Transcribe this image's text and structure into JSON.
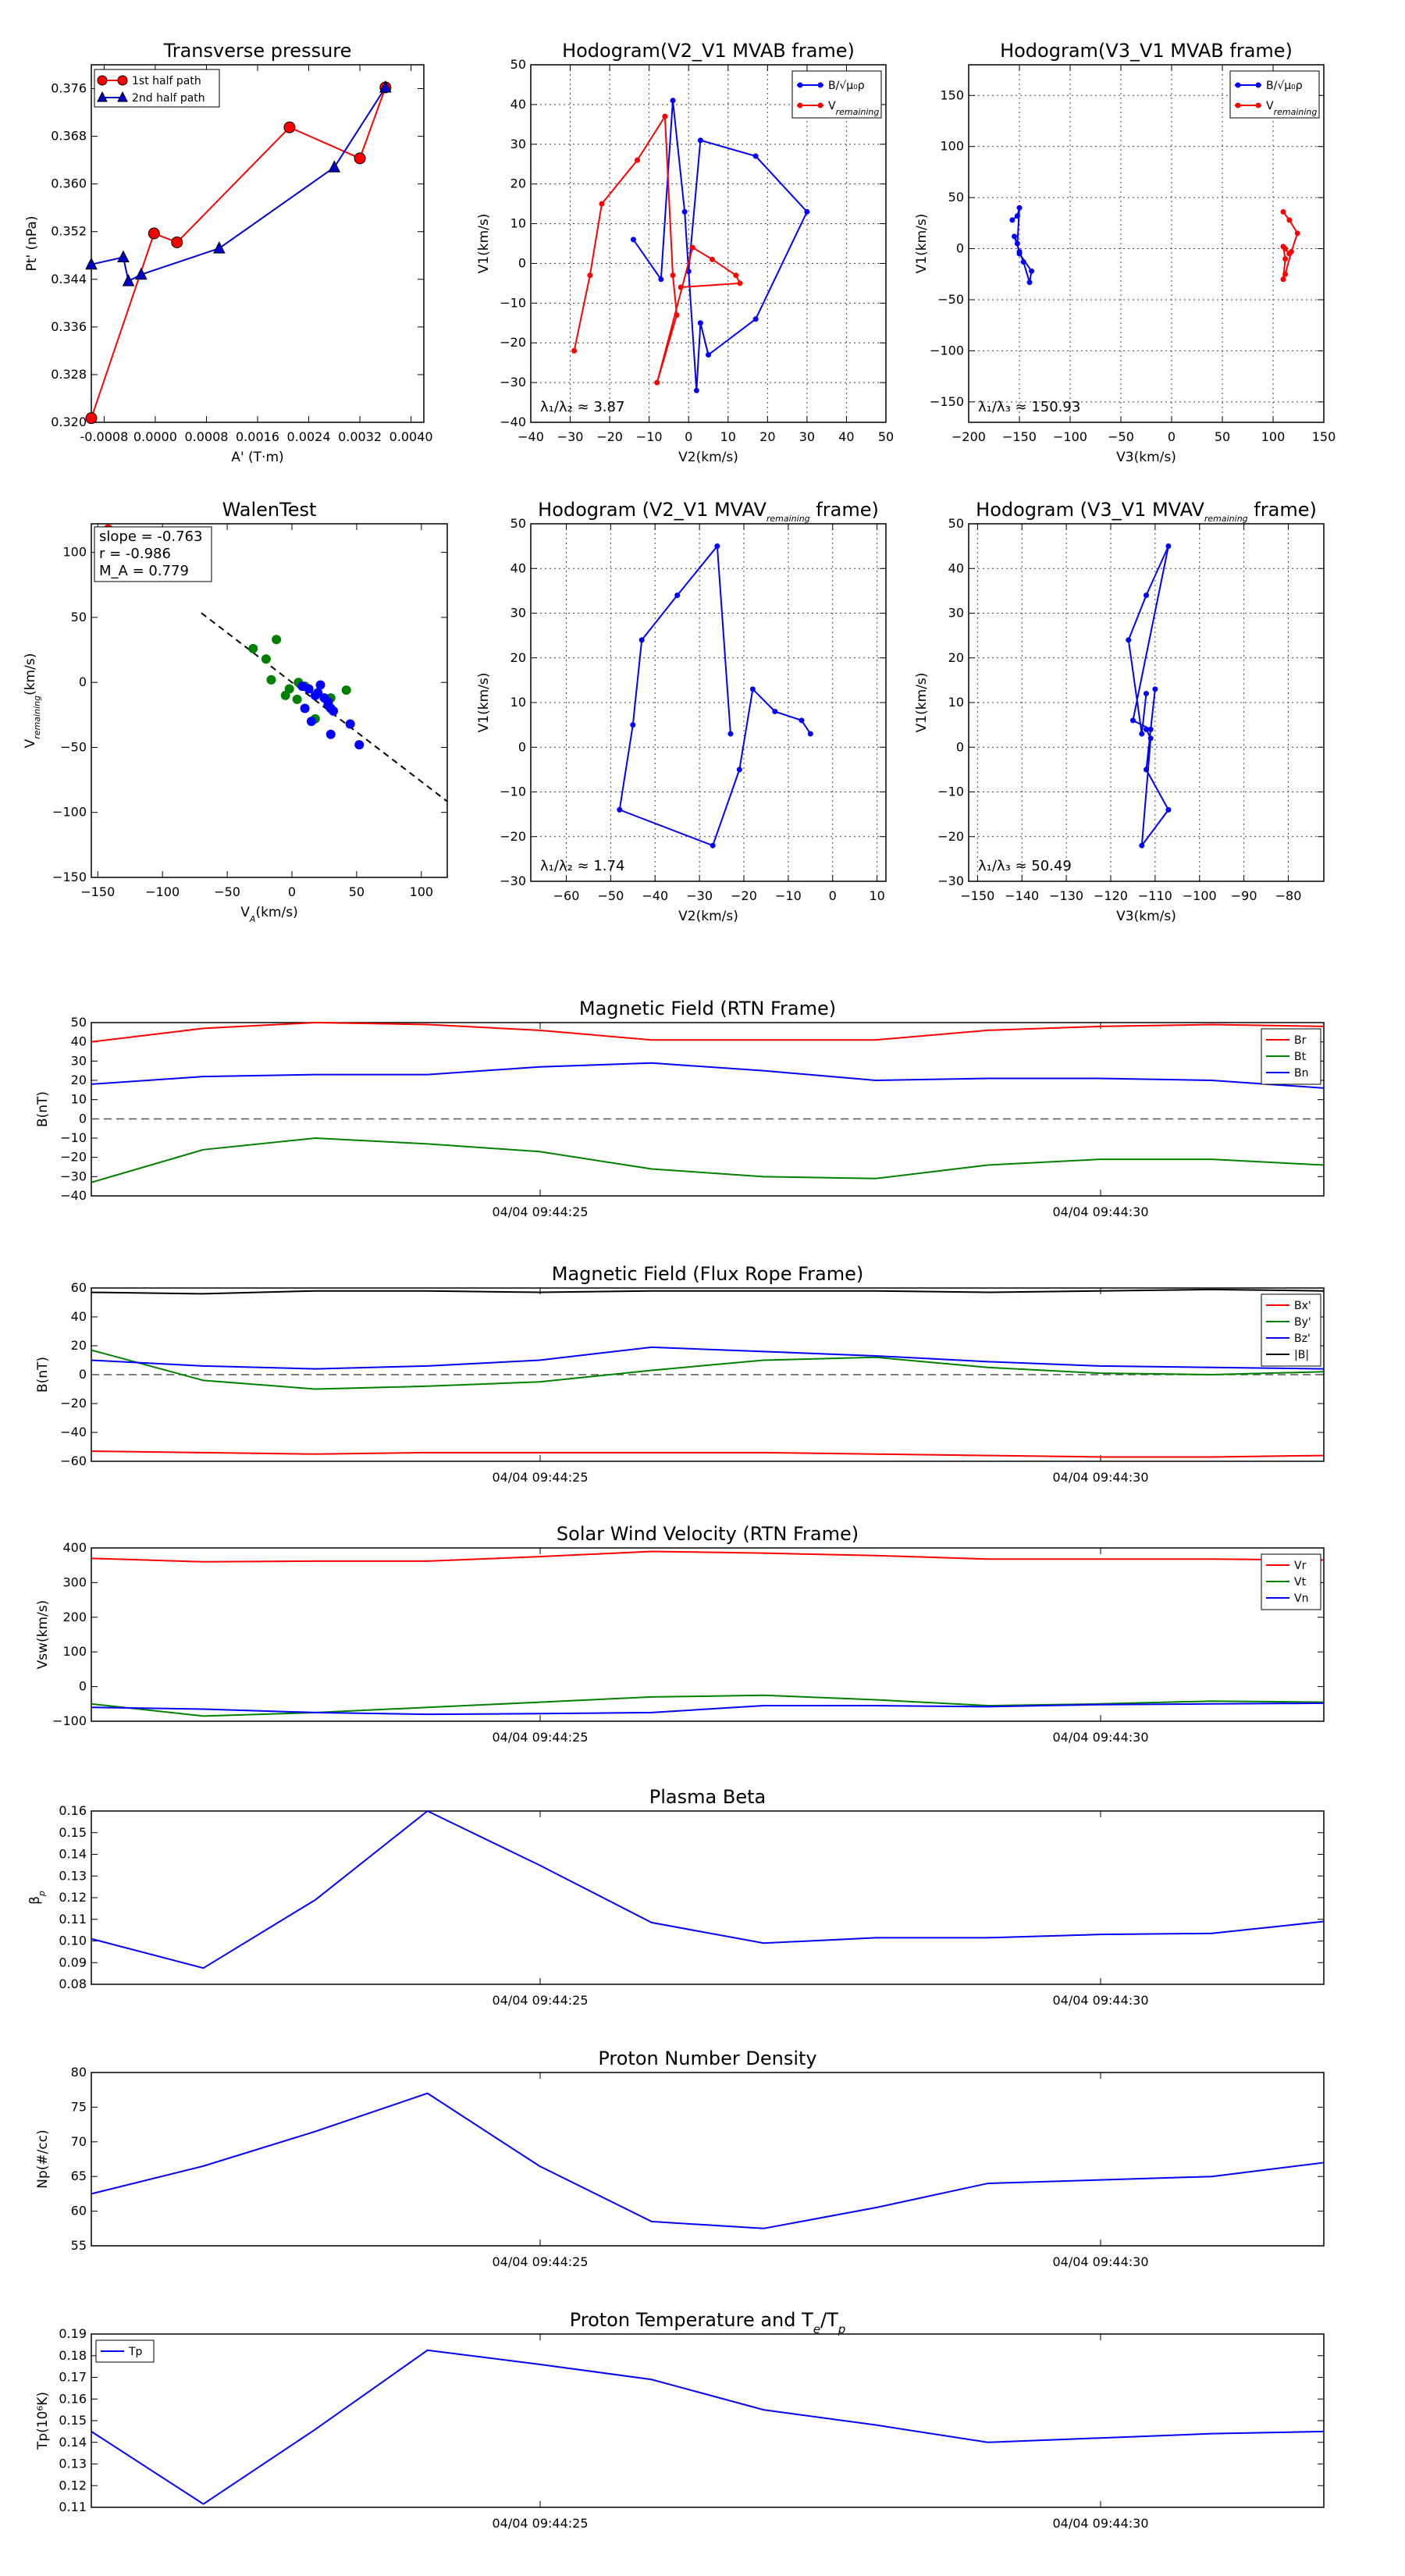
{
  "charts": {
    "tp": {
      "title": "Transverse pressure",
      "xlabel": "A' (T·m)",
      "ylabel": "Pt' (nPa)",
      "xticks": [
        "-0.0008",
        "0.0000",
        "0.0008",
        "0.0016",
        "0.0024",
        "0.0032",
        "0.0040"
      ],
      "yticks": [
        "0.320",
        "0.328",
        "0.336",
        "0.344",
        "0.352",
        "0.360",
        "0.368",
        "0.376"
      ],
      "legend": [
        "1st half path",
        "2nd half path"
      ],
      "colors": [
        "#ff0000",
        "#0000cc"
      ],
      "xlim": [
        -0.001,
        0.0042
      ],
      "ylim": [
        0.32,
        0.38
      ],
      "series": [
        {
          "name": "1st half path",
          "points": [
            [
              -0.001,
              0.3207
            ],
            [
              -2e-05,
              0.3517
            ],
            [
              0.00034,
              0.3502
            ],
            [
              0.0021,
              0.3695
            ],
            [
              0.0032,
              0.3643
            ],
            [
              0.0036,
              0.3762
            ]
          ]
        },
        {
          "name": "2nd half path",
          "points": [
            [
              -0.001,
              0.3465
            ],
            [
              -0.0005,
              0.3477
            ],
            [
              -0.00042,
              0.3437
            ],
            [
              -0.00022,
              0.3448
            ],
            [
              0.001,
              0.3492
            ],
            [
              0.0028,
              0.3628
            ],
            [
              0.0036,
              0.3762
            ]
          ]
        }
      ]
    },
    "h1": {
      "title": "Hodogram(V2_V1 MVAB frame)",
      "xlabel": "V2(km/s)",
      "ylabel": "V1(km/s)",
      "xticks": [
        "−40",
        "−30",
        "−20",
        "−10",
        "0",
        "10",
        "20",
        "30",
        "40",
        "50"
      ],
      "yticks": [
        "−40",
        "−30",
        "−20",
        "−10",
        "0",
        "10",
        "20",
        "30",
        "40",
        "50"
      ],
      "legend_b": "B/√μ₀ρ",
      "legend_v": "V",
      "legend_v_sub": "remaining",
      "ratio_label": "λ₁/λ₂ ≈ 3.87",
      "xlim": [
        -40,
        50
      ],
      "ylim": [
        -40,
        50
      ],
      "b": [
        [
          -14,
          6
        ],
        [
          -7,
          -4
        ],
        [
          -4,
          41
        ],
        [
          -1,
          13
        ],
        [
          2,
          -32
        ],
        [
          3,
          -15
        ],
        [
          5,
          -23
        ],
        [
          17,
          -14
        ],
        [
          30,
          13
        ],
        [
          17,
          27
        ],
        [
          3,
          31
        ],
        [
          0,
          -2
        ]
      ],
      "v": [
        [
          -29,
          -22
        ],
        [
          -25,
          -3
        ],
        [
          -22,
          15
        ],
        [
          -13,
          26
        ],
        [
          -6,
          37
        ],
        [
          -4,
          -3
        ],
        [
          -3,
          -13
        ],
        [
          -8,
          -30
        ],
        [
          1,
          4
        ],
        [
          6,
          1
        ],
        [
          12,
          -3
        ],
        [
          13,
          -5
        ],
        [
          -2,
          -6
        ]
      ]
    },
    "h2": {
      "title": "Hodogram(V3_V1 MVAB frame)",
      "xlabel": "V3(km/s)",
      "ylabel": "V1(km/s)",
      "xticks": [
        "−200",
        "−150",
        "−100",
        "−50",
        "0",
        "50",
        "100",
        "150"
      ],
      "yticks": [
        "−150",
        "−100",
        "−50",
        "0",
        "50",
        "100",
        "150"
      ],
      "legend_b": "B/√μ₀ρ",
      "legend_v": "V",
      "legend_v_sub": "remaining",
      "ratio_label": "λ₁/λ₃ ≈ 150.93",
      "xlim": [
        -200,
        150
      ],
      "ylim": [
        -170,
        180
      ],
      "b": [
        [
          -157,
          28
        ],
        [
          -152,
          32
        ],
        [
          -150,
          40
        ],
        [
          -152,
          5
        ],
        [
          -155,
          12
        ],
        [
          -150,
          -3
        ],
        [
          -146,
          -13
        ],
        [
          -140,
          -33
        ],
        [
          -138,
          -22
        ],
        [
          -150,
          -5
        ]
      ],
      "v": [
        [
          110,
          36
        ],
        [
          116,
          28
        ],
        [
          124,
          15
        ],
        [
          118,
          -3
        ],
        [
          112,
          -25
        ],
        [
          110,
          -30
        ],
        [
          112,
          -10
        ],
        [
          110,
          2
        ],
        [
          116,
          -5
        ],
        [
          112,
          0
        ]
      ]
    },
    "wt": {
      "title": "WalenTest",
      "xlabel": "V",
      "xlabel_sub": "A",
      "xlabel_end": "(km/s)",
      "ylabel": "V",
      "ylabel_sub": "remaining",
      "ylabel_end": "(km/s)",
      "xticks": [
        "−150",
        "−100",
        "−50",
        "0",
        "50",
        "100"
      ],
      "yticks": [
        "−150",
        "−100",
        "−50",
        "0",
        "50",
        "100"
      ],
      "box_lines": [
        "slope = -0.763",
        "r = -0.986",
        "M_A = 0.779"
      ],
      "xlim": [
        -155,
        120
      ],
      "ylim": [
        -150,
        122
      ],
      "slope": -0.763,
      "intercept": 0,
      "green": [
        [
          -30,
          26
        ],
        [
          -12,
          33
        ],
        [
          -20,
          18
        ],
        [
          -16,
          2
        ],
        [
          -2,
          -5
        ],
        [
          4,
          -13
        ],
        [
          5,
          0
        ],
        [
          10,
          -3
        ],
        [
          18,
          -28
        ],
        [
          30,
          -12
        ],
        [
          42,
          -6
        ],
        [
          -5,
          -10
        ]
      ],
      "blue": [
        [
          8,
          -3
        ],
        [
          13,
          -5
        ],
        [
          18,
          -10
        ],
        [
          20,
          -8
        ],
        [
          25,
          -12
        ],
        [
          28,
          -15
        ],
        [
          30,
          -20
        ],
        [
          32,
          -22
        ],
        [
          10,
          -20
        ],
        [
          15,
          -30
        ],
        [
          30,
          -40
        ],
        [
          45,
          -32
        ],
        [
          52,
          -48
        ],
        [
          22,
          -2
        ],
        [
          28,
          -17
        ]
      ],
      "red": [
        [
          -145,
          115
        ],
        [
          -142,
          118
        ]
      ]
    },
    "h3": {
      "title": "Hodogram (V2_V1 MVAV",
      "title_sub": "remaining",
      "title_end": " frame)",
      "xlabel": "V2(km/s)",
      "ylabel": "V1(km/s)",
      "xticks": [
        "−60",
        "−50",
        "−40",
        "−30",
        "−20",
        "−10",
        "0",
        "10"
      ],
      "yticks": [
        "−30",
        "−20",
        "−10",
        "0",
        "10",
        "20",
        "30",
        "40",
        "50"
      ],
      "ratio_label": "λ₁/λ₂ ≈ 1.74",
      "xlim": [
        -68,
        12
      ],
      "ylim": [
        -30,
        50
      ],
      "b": [
        [
          -5,
          3
        ],
        [
          -7,
          6
        ],
        [
          -13,
          8
        ],
        [
          -18,
          13
        ],
        [
          -21,
          -5
        ],
        [
          -27,
          -22
        ],
        [
          -48,
          -14
        ],
        [
          -45,
          5
        ],
        [
          -43,
          24
        ],
        [
          -35,
          34
        ],
        [
          -26,
          45
        ],
        [
          -23,
          3
        ]
      ]
    },
    "h4": {
      "title": "Hodogram (V3_V1 MVAV",
      "title_sub": "remaining",
      "title_end": " frame)",
      "xlabel": "V3(km/s)",
      "ylabel": "V1(km/s)",
      "xticks": [
        "−150",
        "−140",
        "−130",
        "−120",
        "−110",
        "−100",
        "−90",
        "−80"
      ],
      "yticks": [
        "−30",
        "−20",
        "−10",
        "0",
        "10",
        "20",
        "30",
        "40",
        "50"
      ],
      "ratio_label": "λ₁/λ₃ ≈ 50.49",
      "xlim": [
        -152,
        -72
      ],
      "ylim": [
        -30,
        50
      ],
      "b": [
        [
          -112,
          12
        ],
        [
          -113,
          3
        ],
        [
          -116,
          24
        ],
        [
          -112,
          34
        ],
        [
          -107,
          45
        ],
        [
          -115,
          6
        ],
        [
          -111,
          4
        ],
        [
          -110,
          13
        ],
        [
          -112,
          -5
        ],
        [
          -107,
          -14
        ],
        [
          -113,
          -22
        ],
        [
          -111,
          2
        ],
        [
          -112,
          4
        ]
      ]
    },
    "mf": {
      "title": "Magnetic Field (RTN Frame)",
      "ylabel": "B(nT)",
      "xticks": [
        "04/04 09:44:25",
        "04/04 09:44:30"
      ],
      "yticks": [
        "−40",
        "−30",
        "−20",
        "−10",
        "0",
        "10",
        "20",
        "30",
        "40",
        "50"
      ],
      "ylim": [
        -40,
        50
      ],
      "series": [
        {
          "name": "Br",
          "color": "#ff0000",
          "values": [
            40,
            47,
            50,
            49,
            46,
            41,
            41,
            41,
            46,
            48,
            49,
            48
          ]
        },
        {
          "name": "Bt",
          "color": "#008000",
          "values": [
            -33,
            -16,
            -10,
            -13,
            -17,
            -26,
            -30,
            -31,
            -24,
            -21,
            -21,
            -24
          ]
        },
        {
          "name": "Bn",
          "color": "#0000ff",
          "values": [
            18,
            22,
            23,
            23,
            27,
            29,
            25,
            20,
            21,
            21,
            20,
            16
          ]
        }
      ]
    },
    "mff": {
      "title": "Magnetic Field (Flux Rope Frame)",
      "ylabel": "B(nT)",
      "xticks": [
        "04/04 09:44:25",
        "04/04 09:44:30"
      ],
      "yticks": [
        "−60",
        "−40",
        "−20",
        "0",
        "20",
        "40",
        "60"
      ],
      "ylim": [
        -60,
        60
      ],
      "series": [
        {
          "name": "Bx'",
          "color": "#ff0000",
          "values": [
            -53,
            -54,
            -55,
            -54,
            -54,
            -54,
            -54,
            -55,
            -56,
            -57,
            -57,
            -56
          ]
        },
        {
          "name": "By'",
          "color": "#008000",
          "values": [
            17,
            -4,
            -10,
            -8,
            -5,
            3,
            10,
            12,
            5,
            1,
            0,
            2
          ]
        },
        {
          "name": "Bz'",
          "color": "#0000ff",
          "values": [
            10,
            6,
            4,
            6,
            10,
            19,
            16,
            13,
            9,
            6,
            5,
            4
          ]
        },
        {
          "name": "|B|",
          "color": "#000000",
          "values": [
            57,
            56,
            58,
            58,
            57,
            58,
            58,
            58,
            57,
            58,
            59,
            58
          ]
        }
      ]
    },
    "sw": {
      "title": "Solar Wind Velocity (RTN Frame)",
      "ylabel": "Vsw(km/s)",
      "xticks": [
        "04/04 09:44:25",
        "04/04 09:44:30"
      ],
      "yticks": [
        "−100",
        "0",
        "100",
        "200",
        "300",
        "400"
      ],
      "ylim": [
        -100,
        400
      ],
      "series": [
        {
          "name": "Vr",
          "color": "#ff0000",
          "values": [
            370,
            360,
            362,
            362,
            375,
            390,
            385,
            378,
            368,
            368,
            368,
            365
          ]
        },
        {
          "name": "Vt",
          "color": "#008000",
          "values": [
            -50,
            -85,
            -75,
            -60,
            -45,
            -30,
            -25,
            -38,
            -55,
            -50,
            -42,
            -45
          ]
        },
        {
          "name": "Vn",
          "color": "#0000ff",
          "values": [
            -60,
            -65,
            -75,
            -80,
            -78,
            -75,
            -55,
            -55,
            -58,
            -52,
            -50,
            -48
          ]
        }
      ]
    },
    "pb": {
      "title": "Plasma Beta",
      "ylabel": "β",
      "ylabel_sub": "p",
      "xticks": [
        "04/04 09:44:25",
        "04/04 09:44:30"
      ],
      "yticks": [
        "0.08",
        "0.09",
        "0.10",
        "0.11",
        "0.12",
        "0.13",
        "0.14",
        "0.15",
        "0.16"
      ],
      "ylim": [
        0.08,
        0.16
      ],
      "series": [
        {
          "name": "beta",
          "color": "#0000ff",
          "values": [
            0.101,
            0.0875,
            0.119,
            0.16,
            0.135,
            0.1085,
            0.099,
            0.1015,
            0.1015,
            0.103,
            0.1035,
            0.109
          ]
        }
      ]
    },
    "pd": {
      "title": "Proton Number Density",
      "ylabel": "Np(#/cc)",
      "xticks": [
        "04/04 09:44:25",
        "04/04 09:44:30"
      ],
      "yticks": [
        "55",
        "60",
        "65",
        "70",
        "75",
        "80"
      ],
      "ylim": [
        55,
        80
      ],
      "series": [
        {
          "name": "Np",
          "color": "#0000ff",
          "values": [
            62.5,
            66.5,
            71.5,
            77,
            66.5,
            58.5,
            57.5,
            60.5,
            64,
            64.5,
            65,
            67
          ]
        }
      ]
    },
    "pt": {
      "title": "Proton Temperature and T",
      "title_sub1": "e",
      "title_mid": "/T",
      "title_sub2": "p",
      "ylabel": "Tp(10⁶K)",
      "legend": [
        "Tp"
      ],
      "xticks": [
        "04/04 09:44:25",
        "04/04 09:44:30"
      ],
      "yticks": [
        "0.11",
        "0.12",
        "0.13",
        "0.14",
        "0.15",
        "0.16",
        "0.17",
        "0.18",
        "0.19"
      ],
      "ylim": [
        0.11,
        0.19
      ],
      "series": [
        {
          "name": "Tp",
          "color": "#0000ff",
          "values": [
            0.145,
            0.1115,
            0.146,
            0.1825,
            0.176,
            0.169,
            0.155,
            0.148,
            0.14,
            0.142,
            0.144,
            0.145
          ]
        }
      ]
    }
  },
  "chart_data": [
    {
      "type": "line",
      "title": "Transverse pressure",
      "xlabel": "A' (T·m)",
      "ylabel": "Pt' (nPa)",
      "xlim": [
        -0.001,
        0.0042
      ],
      "ylim": [
        0.32,
        0.38
      ]
    },
    {
      "type": "line",
      "title": "Hodogram(V2_V1 MVAB frame)",
      "xlabel": "V2(km/s)",
      "ylabel": "V1(km/s)"
    },
    {
      "type": "line",
      "title": "Hodogram(V3_V1 MVAB frame)",
      "xlabel": "V3(km/s)",
      "ylabel": "V1(km/s)"
    },
    {
      "type": "scatter",
      "title": "WalenTest",
      "xlabel": "V_A(km/s)",
      "ylabel": "V_remaining(km/s)"
    },
    {
      "type": "line",
      "title": "Hodogram (V2_V1 MVAV_remaining frame)"
    },
    {
      "type": "line",
      "title": "Hodogram (V3_V1 MVAV_remaining frame)"
    },
    {
      "type": "line",
      "title": "Magnetic Field (RTN Frame)"
    },
    {
      "type": "line",
      "title": "Magnetic Field (Flux Rope Frame)"
    },
    {
      "type": "line",
      "title": "Solar Wind Velocity (RTN Frame)"
    },
    {
      "type": "line",
      "title": "Plasma Beta"
    },
    {
      "type": "line",
      "title": "Proton Number Density"
    },
    {
      "type": "line",
      "title": "Proton Temperature and Te/Tp"
    }
  ]
}
